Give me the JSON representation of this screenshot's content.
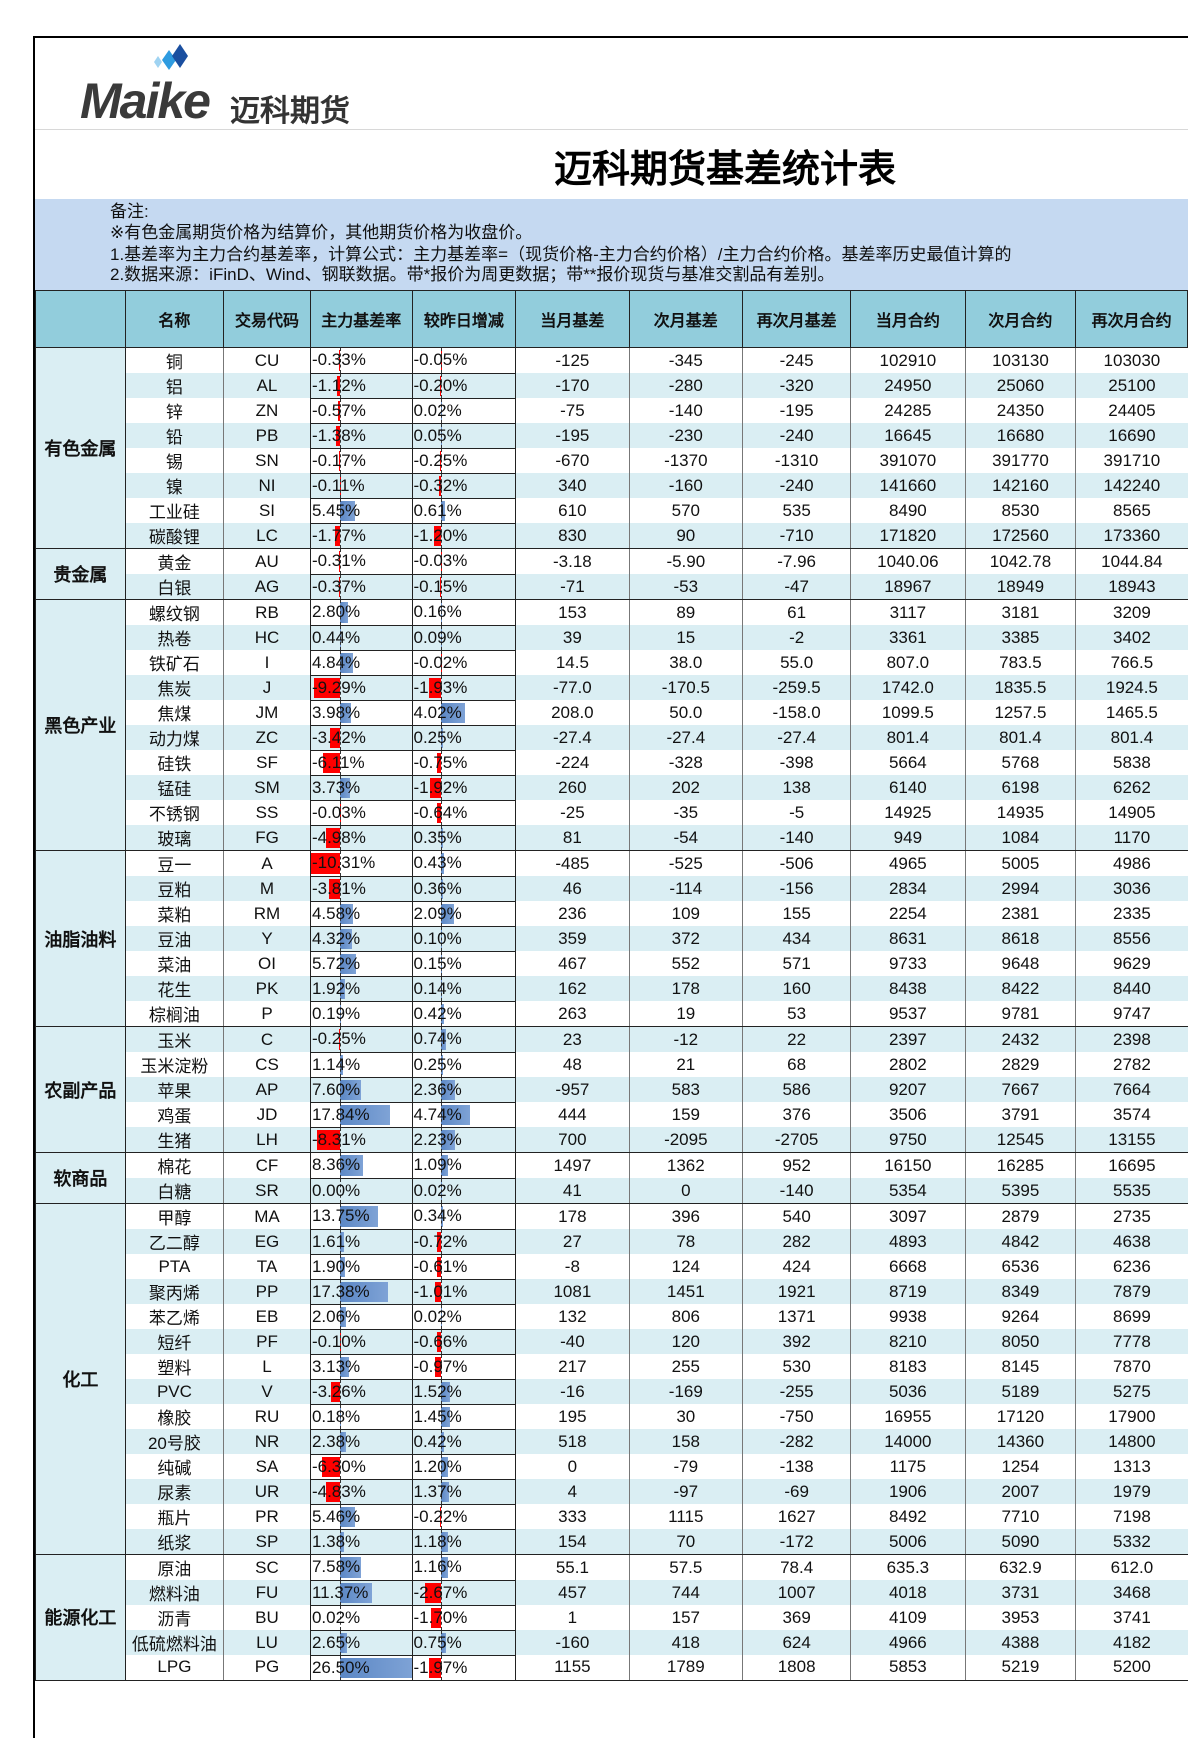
{
  "logo": {
    "word": "Maike",
    "cn": "迈科期货",
    "colors": [
      "#9fd3f2",
      "#2e9be0",
      "#1a4fa0"
    ]
  },
  "title": "迈科期货基差统计表",
  "notes": [
    "备注:",
    "※有色金属期货价格为结算价，其他期货价格为收盘价。",
    "1.基差率为主力合约基差率，计算公式：主力基差率=（现货价格-主力合约价格）/主力合约价格。基差率历史最值计算的",
    "2.数据来源：iFinD、Wind、钢联数据。带*报价为周更数据；带**报价现货与基准交割品有差别。"
  ],
  "colors": {
    "header": "#92cddc",
    "notes": "#c5d9f1",
    "row_alt": "#daeef3",
    "bar_positive": "#5b87c5",
    "bar_negative": "#ff0000"
  },
  "columns": [
    "",
    "名称",
    "交易代码",
    "主力基差率",
    "较昨日增减",
    "当月基差",
    "次月基差",
    "再次月基差",
    "当月合约",
    "次月合约",
    "再次月合约"
  ],
  "groups": [
    {
      "name": "有色金属",
      "rows": [
        [
          "铜",
          "CU",
          "-0.33%",
          "-0.05%",
          "-125",
          "-345",
          "-245",
          "102910",
          "103130",
          "103030"
        ],
        [
          "铝",
          "AL",
          "-1.12%",
          "-0.20%",
          "-170",
          "-280",
          "-320",
          "24950",
          "25060",
          "25100"
        ],
        [
          "锌",
          "ZN",
          "-0.57%",
          "0.02%",
          "-75",
          "-140",
          "-195",
          "24285",
          "24350",
          "24405"
        ],
        [
          "铅",
          "PB",
          "-1.38%",
          "0.05%",
          "-195",
          "-230",
          "-240",
          "16645",
          "16680",
          "16690"
        ],
        [
          "锡",
          "SN",
          "-0.17%",
          "-0.25%",
          "-670",
          "-1370",
          "-1310",
          "391070",
          "391770",
          "391710"
        ],
        [
          "镍",
          "NI",
          "-0.11%",
          "-0.32%",
          "340",
          "-160",
          "-240",
          "141660",
          "142160",
          "142240"
        ],
        [
          "工业硅",
          "SI",
          "5.45%",
          "0.61%",
          "610",
          "570",
          "535",
          "8490",
          "8530",
          "8565"
        ],
        [
          "碳酸锂",
          "LC",
          "-1.77%",
          "-1.20%",
          "830",
          "90",
          "-710",
          "171820",
          "172560",
          "173360"
        ]
      ]
    },
    {
      "name": "贵金属",
      "rows": [
        [
          "黄金",
          "AU",
          "-0.31%",
          "-0.03%",
          "-3.18",
          "-5.90",
          "-7.96",
          "1040.06",
          "1042.78",
          "1044.84"
        ],
        [
          "白银",
          "AG",
          "-0.37%",
          "-0.15%",
          "-71",
          "-53",
          "-47",
          "18967",
          "18949",
          "18943"
        ]
      ]
    },
    {
      "name": "黑色产业",
      "rows": [
        [
          "螺纹钢",
          "RB",
          "2.80%",
          "0.16%",
          "153",
          "89",
          "61",
          "3117",
          "3181",
          "3209"
        ],
        [
          "热卷",
          "HC",
          "0.44%",
          "0.09%",
          "39",
          "15",
          "-2",
          "3361",
          "3385",
          "3402"
        ],
        [
          "铁矿石",
          "I",
          "4.84%",
          "-0.02%",
          "14.5",
          "38.0",
          "55.0",
          "807.0",
          "783.5",
          "766.5"
        ],
        [
          "焦炭",
          "J",
          "-9.29%",
          "-1.93%",
          "-77.0",
          "-170.5",
          "-259.5",
          "1742.0",
          "1835.5",
          "1924.5"
        ],
        [
          "焦煤",
          "JM",
          "3.98%",
          "4.02%",
          "208.0",
          "50.0",
          "-158.0",
          "1099.5",
          "1257.5",
          "1465.5"
        ],
        [
          "动力煤",
          "ZC",
          "-3.42%",
          "0.25%",
          "-27.4",
          "-27.4",
          "-27.4",
          "801.4",
          "801.4",
          "801.4"
        ],
        [
          "硅铁",
          "SF",
          "-6.11%",
          "-0.75%",
          "-224",
          "-328",
          "-398",
          "5664",
          "5768",
          "5838"
        ],
        [
          "锰硅",
          "SM",
          "3.73%",
          "-1.92%",
          "260",
          "202",
          "138",
          "6140",
          "6198",
          "6262"
        ],
        [
          "不锈钢",
          "SS",
          "-0.03%",
          "-0.64%",
          "-25",
          "-35",
          "-5",
          "14925",
          "14935",
          "14905"
        ],
        [
          "玻璃",
          "FG",
          "-4.98%",
          "0.35%",
          "81",
          "-54",
          "-140",
          "949",
          "1084",
          "1170"
        ]
      ]
    },
    {
      "name": "油脂油料",
      "rows": [
        [
          "豆一",
          "A",
          "-10.31%",
          "0.43%",
          "-485",
          "-525",
          "-506",
          "4965",
          "5005",
          "4986"
        ],
        [
          "豆粕",
          "M",
          "-3.81%",
          "0.36%",
          "46",
          "-114",
          "-156",
          "2834",
          "2994",
          "3036"
        ],
        [
          "菜粕",
          "RM",
          "4.58%",
          "2.09%",
          "236",
          "109",
          "155",
          "2254",
          "2381",
          "2335"
        ],
        [
          "豆油",
          "Y",
          "4.32%",
          "0.10%",
          "359",
          "372",
          "434",
          "8631",
          "8618",
          "8556"
        ],
        [
          "菜油",
          "OI",
          "5.72%",
          "0.15%",
          "467",
          "552",
          "571",
          "9733",
          "9648",
          "9629"
        ],
        [
          "花生",
          "PK",
          "1.92%",
          "0.14%",
          "162",
          "178",
          "160",
          "8438",
          "8422",
          "8440"
        ],
        [
          "棕榈油",
          "P",
          "0.19%",
          "0.42%",
          "263",
          "19",
          "53",
          "9537",
          "9781",
          "9747"
        ]
      ]
    },
    {
      "name": "农副产品",
      "rows": [
        [
          "玉米",
          "C",
          "-0.25%",
          "0.74%",
          "23",
          "-12",
          "22",
          "2397",
          "2432",
          "2398"
        ],
        [
          "玉米淀粉",
          "CS",
          "1.14%",
          "0.25%",
          "48",
          "21",
          "68",
          "2802",
          "2829",
          "2782"
        ],
        [
          "苹果",
          "AP",
          "7.60%",
          "2.36%",
          "-957",
          "583",
          "586",
          "9207",
          "7667",
          "7664"
        ],
        [
          "鸡蛋",
          "JD",
          "17.84%",
          "4.74%",
          "444",
          "159",
          "376",
          "3506",
          "3791",
          "3574"
        ],
        [
          "生猪",
          "LH",
          "-8.31%",
          "2.23%",
          "700",
          "-2095",
          "-2705",
          "9750",
          "12545",
          "13155"
        ]
      ]
    },
    {
      "name": "软商品",
      "rows": [
        [
          "棉花",
          "CF",
          "8.36%",
          "1.09%",
          "1497",
          "1362",
          "952",
          "16150",
          "16285",
          "16695"
        ],
        [
          "白糖",
          "SR",
          "0.00%",
          "0.02%",
          "41",
          "0",
          "-140",
          "5354",
          "5395",
          "5535"
        ]
      ]
    },
    {
      "name": "化工",
      "rows": [
        [
          "甲醇",
          "MA",
          "13.75%",
          "0.34%",
          "178",
          "396",
          "540",
          "3097",
          "2879",
          "2735"
        ],
        [
          "乙二醇",
          "EG",
          "1.61%",
          "-0.72%",
          "27",
          "78",
          "282",
          "4893",
          "4842",
          "4638"
        ],
        [
          "PTA",
          "TA",
          "1.90%",
          "-0.61%",
          "-8",
          "124",
          "424",
          "6668",
          "6536",
          "6236"
        ],
        [
          "聚丙烯",
          "PP",
          "17.38%",
          "-1.01%",
          "1081",
          "1451",
          "1921",
          "8719",
          "8349",
          "7879"
        ],
        [
          "苯乙烯",
          "EB",
          "2.06%",
          "0.02%",
          "132",
          "806",
          "1371",
          "9938",
          "9264",
          "8699"
        ],
        [
          "短纤",
          "PF",
          "-0.10%",
          "-0.66%",
          "-40",
          "120",
          "392",
          "8210",
          "8050",
          "7778"
        ],
        [
          "塑料",
          "L",
          "3.13%",
          "-0.97%",
          "217",
          "255",
          "530",
          "8183",
          "8145",
          "7870"
        ],
        [
          "PVC",
          "V",
          "-3.26%",
          "1.52%",
          "-16",
          "-169",
          "-255",
          "5036",
          "5189",
          "5275"
        ],
        [
          "橡胶",
          "RU",
          "0.18%",
          "1.45%",
          "195",
          "30",
          "-750",
          "16955",
          "17120",
          "17900"
        ],
        [
          "20号胶",
          "NR",
          "2.38%",
          "0.42%",
          "518",
          "158",
          "-282",
          "14000",
          "14360",
          "14800"
        ],
        [
          "纯碱",
          "SA",
          "-6.30%",
          "1.20%",
          "0",
          "-79",
          "-138",
          "1175",
          "1254",
          "1313"
        ],
        [
          "尿素",
          "UR",
          "-4.83%",
          "1.37%",
          "4",
          "-97",
          "-69",
          "1906",
          "2007",
          "1979"
        ],
        [
          "瓶片",
          "PR",
          "5.46%",
          "-0.22%",
          "333",
          "1115",
          "1627",
          "8492",
          "7710",
          "7198"
        ],
        [
          "纸浆",
          "SP",
          "1.38%",
          "1.18%",
          "154",
          "70",
          "-172",
          "5006",
          "5090",
          "5332"
        ]
      ]
    },
    {
      "name": "能源化工",
      "rows": [
        [
          "原油",
          "SC",
          "7.58%",
          "1.16%",
          "55.1",
          "57.5",
          "78.4",
          "635.3",
          "632.9",
          "612.0"
        ],
        [
          "燃料油",
          "FU",
          "11.37%",
          "-2.67%",
          "457",
          "744",
          "1007",
          "4018",
          "3731",
          "3468"
        ],
        [
          "沥青",
          "BU",
          "0.02%",
          "-1.70%",
          "1",
          "157",
          "369",
          "4109",
          "3953",
          "3741"
        ],
        [
          "低硫燃料油",
          "LU",
          "2.65%",
          "0.75%",
          "-160",
          "418",
          "624",
          "4966",
          "4388",
          "4182"
        ],
        [
          "LPG",
          "PG",
          "26.50%",
          "-1.97%",
          "1155",
          "1789",
          "1808",
          "5853",
          "5219",
          "5200"
        ]
      ]
    }
  ]
}
